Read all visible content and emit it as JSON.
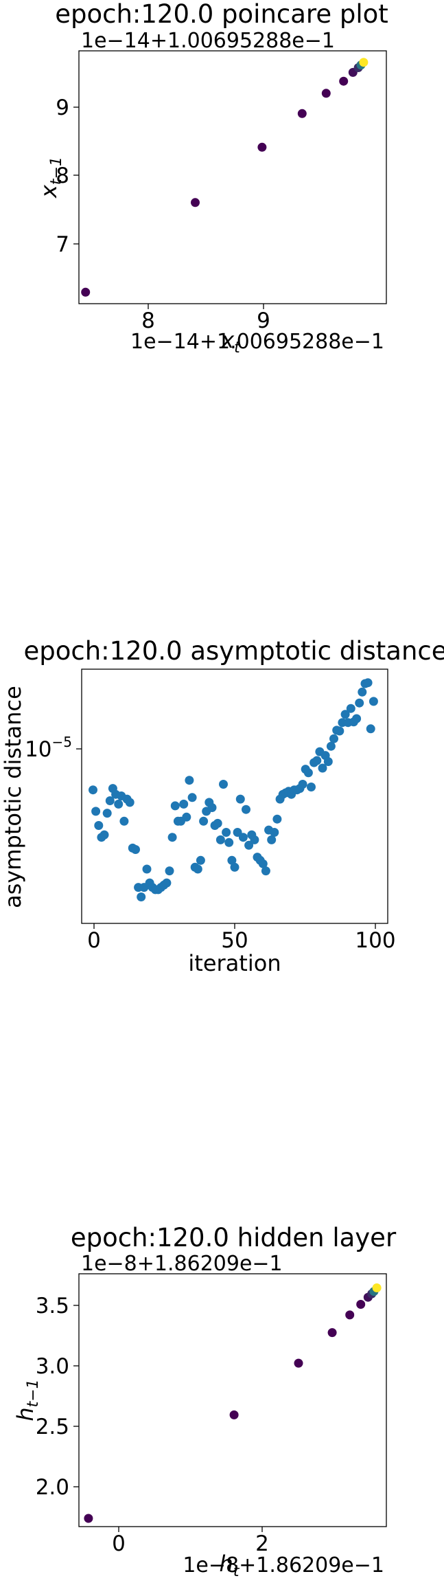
{
  "charts": [
    {
      "title": "epoch:120.0 poincare plot",
      "x_offset_text": "1e−14+1.00695288e−1",
      "y_offset_text": "1e−14+1.00695288e−1",
      "xlabel_main": "x",
      "xlabel_sub": "t",
      "ylabel_main": "x",
      "ylabel_sub": "t−1",
      "x_ticks": [
        "8",
        "9"
      ],
      "y_ticks": [
        "7",
        "8",
        "9"
      ]
    },
    {
      "title": "epoch:120.0 asymptotic distance",
      "xlabel": "iteration",
      "ylabel": "asymptotic distance",
      "x_ticks": [
        "0",
        "50",
        "100"
      ],
      "y_tick_base": "10",
      "y_tick_exp": "−5"
    },
    {
      "title": "epoch:120.0 hidden layer",
      "x_offset_text": "1e−8+1.86209e−1",
      "y_offset_text": "1e−8+1.86209e−1",
      "xlabel_main": "h",
      "xlabel_sub": "t",
      "ylabel_main": "h",
      "ylabel_sub": "t−1",
      "x_ticks": [
        "0",
        "2"
      ],
      "y_ticks": [
        "2.0",
        "2.5",
        "3.0",
        "3.5"
      ]
    }
  ],
  "chart_data": [
    {
      "type": "scatter",
      "title": "epoch:120.0 poincare plot",
      "xlabel": "x_t",
      "ylabel": "x_{t-1}",
      "offset": "1e-14+1.00695288e-1",
      "colormap": "viridis",
      "color_dark": "#440154",
      "color_light": "#fde725",
      "xlim": [
        7.55,
        9.85
      ],
      "ylim": [
        6.1,
        9.85
      ],
      "x": [
        7.6,
        8.42,
        8.92,
        9.22,
        9.4,
        9.53,
        9.6,
        9.64,
        9.66,
        9.68
      ],
      "y": [
        6.27,
        7.6,
        8.42,
        8.92,
        9.22,
        9.4,
        9.53,
        9.6,
        9.64,
        9.68
      ],
      "color_fraction": [
        0,
        0,
        0,
        0,
        0,
        0,
        0.05,
        0.15,
        0.4,
        1
      ]
    },
    {
      "type": "scatter",
      "title": "epoch:120.0 asymptotic distance",
      "xlabel": "iteration",
      "ylabel": "asymptotic distance",
      "y_scale": "log",
      "color": "#1f77b4",
      "xlim": [
        -4,
        104
      ],
      "ylim": [
        1.25e-06,
        2.4e-05
      ],
      "x": [
        0,
        1,
        2,
        3,
        4,
        5,
        6,
        7,
        8,
        9,
        10,
        11,
        12,
        13,
        14,
        15,
        16,
        17,
        18,
        19,
        20,
        21,
        22,
        23,
        24,
        25,
        26,
        27,
        28,
        29,
        30,
        31,
        32,
        33,
        34,
        35,
        36,
        37,
        38,
        39,
        40,
        41,
        42,
        43,
        44,
        45,
        46,
        47,
        48,
        49,
        50,
        51,
        52,
        53,
        54,
        55,
        56,
        57,
        58,
        59,
        60,
        61,
        62,
        63,
        64,
        65,
        66,
        67,
        68,
        69,
        70,
        71,
        72,
        73,
        74,
        75,
        76,
        77,
        78,
        79,
        80,
        81,
        82,
        83,
        84,
        85,
        86,
        87,
        88,
        89,
        90,
        91,
        92,
        93,
        94,
        95,
        96,
        97,
        98,
        99
      ],
      "y": [
        5.9e-06,
        4.6e-06,
        3.9e-06,
        3.4e-06,
        3.5e-06,
        4.5e-06,
        5.2e-06,
        6e-06,
        5.6e-06,
        5e-06,
        5.5e-06,
        4.1e-06,
        5.3e-06,
        5.1e-06,
        3e-06,
        2.95e-06,
        1.9e-06,
        1.7e-06,
        1.9e-06,
        2.35e-06,
        2e-06,
        1.9e-06,
        1.85e-06,
        1.85e-06,
        1.9e-06,
        1.95e-06,
        2e-06,
        2.3e-06,
        3.4e-06,
        4.9e-06,
        4.1e-06,
        4.1e-06,
        5e-06,
        4.3e-06,
        6.6e-06,
        5.4e-06,
        2.4e-06,
        2.35e-06,
        2.6e-06,
        4.1e-06,
        4.6e-06,
        5.1e-06,
        4.8e-06,
        3.9e-06,
        4e-06,
        3.3e-06,
        6.3e-06,
        3.6e-06,
        3.2e-06,
        2.6e-06,
        2.4e-06,
        3.6e-06,
        5.3e-06,
        3.4e-06,
        4.7e-06,
        3.1e-06,
        3.5e-06,
        3.3e-06,
        2.7e-06,
        2.6e-06,
        2.5e-06,
        2.3e-06,
        3.7e-06,
        3.3e-06,
        3.6e-06,
        4.2e-06,
        5.3e-06,
        5.6e-06,
        5.7e-06,
        5.8e-06,
        5.6e-06,
        5.9e-06,
        5.9e-06,
        6e-06,
        6.3e-06,
        7.5e-06,
        7.2e-06,
        6.1e-06,
        8.1e-06,
        8.3e-06,
        9.2e-06,
        7.6e-06,
        8.8e-06,
        8.2e-06,
        9.8e-06,
        1.07e-05,
        1.18e-05,
        1.17e-05,
        1.29e-05,
        1.42e-05,
        1.29e-05,
        1.52e-05,
        1.3e-05,
        1.35e-05,
        1.62e-05,
        1.84e-05,
        2.03e-05,
        2.05e-05,
        1.2e-05,
        1.65e-05
      ]
    },
    {
      "type": "scatter",
      "title": "epoch:120.0 hidden layer",
      "xlabel": "h_t",
      "ylabel": "h_{t-1}",
      "offset": "1e-8+1.86209e-1",
      "colormap": "viridis",
      "color_dark": "#440154",
      "color_light": "#fde725",
      "xlim": [
        -0.5,
        3.7
      ],
      "ylim": [
        1.55,
        3.7
      ],
      "x": [
        -0.37,
        1.62,
        2.5,
        2.96,
        3.2,
        3.35,
        3.45,
        3.5,
        3.53,
        3.57
      ],
      "y": [
        1.62,
        2.5,
        2.94,
        3.2,
        3.35,
        3.44,
        3.5,
        3.53,
        3.55,
        3.58
      ],
      "color_fraction": [
        0,
        0,
        0,
        0,
        0,
        0,
        0.05,
        0.15,
        0.4,
        1
      ]
    }
  ]
}
